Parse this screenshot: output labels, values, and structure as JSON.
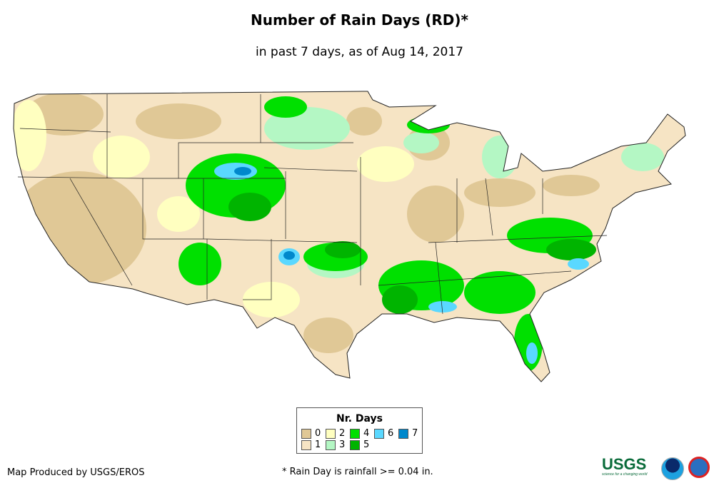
{
  "title": "Number of Rain Days (RD)*",
  "subtitle": "in past 7 days, as of Aug 14, 2017",
  "legend": {
    "title": "Nr. Days",
    "items": [
      {
        "label": "0",
        "color": "#e0c896"
      },
      {
        "label": "1",
        "color": "#f6e4c4"
      },
      {
        "label": "2",
        "color": "#ffffc0"
      },
      {
        "label": "3",
        "color": "#b4f7c4"
      },
      {
        "label": "4",
        "color": "#00e000"
      },
      {
        "label": "5",
        "color": "#00b400"
      },
      {
        "label": "6",
        "color": "#5ad8ff"
      },
      {
        "label": "7",
        "color": "#0088cc"
      }
    ]
  },
  "footer": {
    "credit": "Map Produced by USGS/EROS",
    "note": "* Rain Day is rainfall >= 0.04 in.",
    "usgs_logo": "USGS",
    "usgs_tagline": "science for a changing world"
  }
}
